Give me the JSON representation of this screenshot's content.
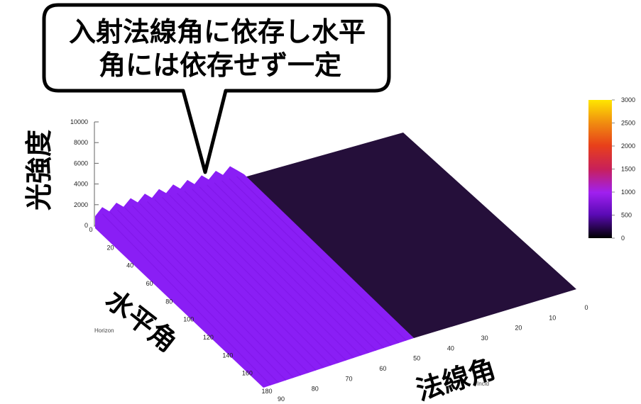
{
  "callout": {
    "line1": "入射法線角に依存し水平",
    "line2": "角には依存せず一定"
  },
  "chart_data": {
    "type": "surface3d",
    "zlabel": "光強度",
    "ylabel": "水平角",
    "xlabel": "法線角",
    "ylabel_small": "Horizon",
    "xlabel_small": "Incid",
    "z_ticks": [
      "0",
      "2000",
      "4000",
      "6000",
      "8000",
      "10000"
    ],
    "y_ticks": [
      "0",
      "20",
      "40",
      "60",
      "80",
      "100",
      "120",
      "140",
      "160",
      "180"
    ],
    "x_ticks": [
      "0",
      "10",
      "20",
      "30",
      "40",
      "50",
      "60",
      "70",
      "80",
      "90"
    ],
    "zlim": [
      0,
      10000
    ],
    "ylim": [
      0,
      180
    ],
    "xlim": [
      0,
      90
    ],
    "colorbar": {
      "ticks": [
        "0",
        "500",
        "1000",
        "1500",
        "2000",
        "2500",
        "3000"
      ],
      "range": [
        0,
        3000
      ]
    },
    "regions": [
      {
        "incidence_range": [
          0,
          45
        ],
        "intensity": 0,
        "color": "#250f3a"
      },
      {
        "incidence_range": [
          45,
          90
        ],
        "intensity": 700,
        "color": "#8a1ef5"
      }
    ],
    "edge_profile_at_horizontal_0": [
      500,
      700,
      900,
      1100,
      1300,
      1500,
      1700,
      1900,
      2200,
      2500,
      2700,
      2900,
      3100,
      3300,
      3600,
      3800,
      4000,
      4300,
      4500,
      4800
    ],
    "colors": {
      "low": "#1a0a22",
      "high_region": "#8a1ef5",
      "low_region": "#250f3a"
    }
  }
}
